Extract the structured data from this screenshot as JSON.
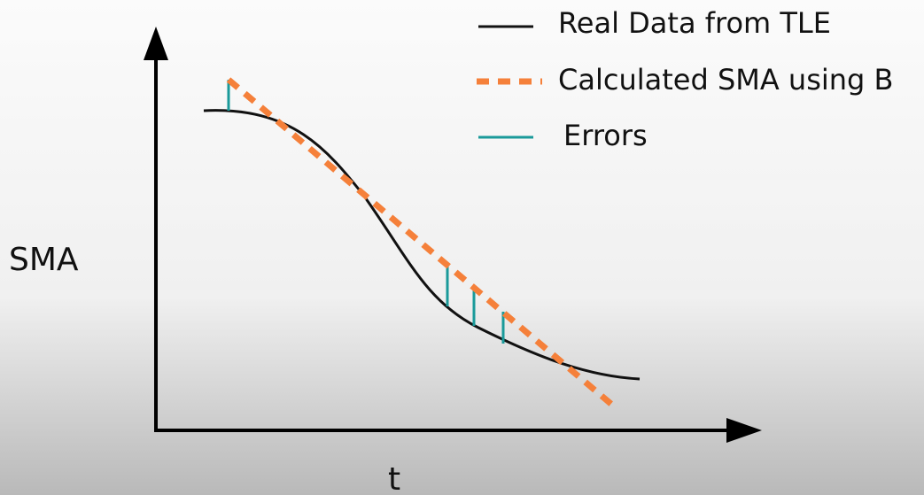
{
  "axis_labels": {
    "y": "SMA",
    "x": "t"
  },
  "legend": [
    {
      "label": "Real Data from TLE"
    },
    {
      "label": "Calculated SMA using B"
    },
    {
      "label": "Errors"
    }
  ]
}
